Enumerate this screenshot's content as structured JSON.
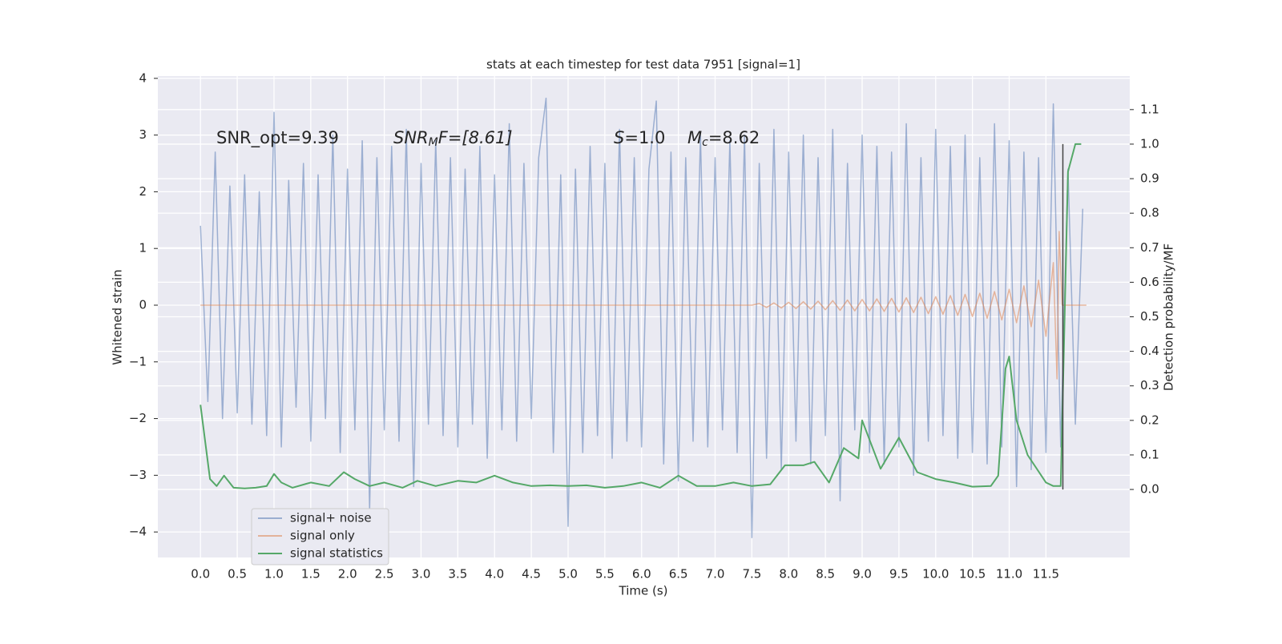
{
  "chart_data": {
    "type": "line",
    "title": "stats at each timestep for test data 7951 [signal=1]",
    "xlabel": "Time (s)",
    "ylabel": "Whitened strain",
    "y2label": "Detection probability/MF",
    "xlim": [
      -0.58,
      12.64
    ],
    "ylim": [
      -4.45,
      4.04
    ],
    "y2lim": [
      -0.197,
      1.197
    ],
    "xticks": [
      {
        "value": 0,
        "label": "0.0"
      },
      0.5,
      {
        "value": 1,
        "label": "1.0"
      },
      1.5,
      {
        "value": 2,
        "label": "2.0"
      },
      2.5,
      {
        "value": 3,
        "label": "3.0"
      },
      3.5,
      {
        "value": 4,
        "label": "4.0"
      },
      4.5,
      {
        "value": 5,
        "label": "5.0"
      },
      5.5,
      {
        "value": 6,
        "label": "6.0"
      },
      6.5,
      {
        "value": 7,
        "label": "7.0"
      },
      7.5,
      {
        "value": 8,
        "label": "8.0"
      },
      8.5,
      {
        "value": 9,
        "label": "9.0"
      },
      9.5,
      {
        "value": 10,
        "label": "10.0"
      },
      10.5,
      {
        "value": 11,
        "label": "11.0"
      },
      11.5
    ],
    "yticks": [
      {
        "value": -4,
        "label": "−4"
      },
      {
        "value": -3,
        "label": "−3"
      },
      {
        "value": -2,
        "label": "−2"
      },
      {
        "value": -1,
        "label": "−1"
      },
      0,
      1,
      2,
      3,
      4
    ],
    "y2ticks": [
      {
        "value": 0,
        "label": "0.0"
      },
      0.1,
      0.2,
      0.3,
      0.4,
      0.5,
      0.6,
      0.7,
      0.8,
      0.9,
      {
        "value": 1,
        "label": "1.0"
      },
      1.1
    ],
    "grid": true,
    "legend": "lower left",
    "annotations": [
      {
        "base": "SNR_opt=9.39"
      },
      {
        "base": "SNR",
        "sub": "M",
        "rest": "F=[8.61]"
      },
      {
        "base": "S",
        "rest": "=1.0"
      },
      {
        "base": "M",
        "sub": "c",
        "rest": "=8.62"
      }
    ],
    "vline": {
      "x": 11.73,
      "y2": [
        0,
        1.0
      ],
      "color": "#444444"
    },
    "series": [
      {
        "name": "signal+ noise",
        "color": "#4c72b0",
        "x": [
          0,
          0.1,
          0.2,
          0.3,
          0.4,
          0.5,
          0.6,
          0.7,
          0.8,
          0.9,
          1,
          1.1,
          1.2,
          1.3,
          1.4,
          1.5,
          1.6,
          1.7,
          1.8,
          1.9,
          2,
          2.1,
          2.2,
          2.3,
          2.4,
          2.5,
          2.6,
          2.7,
          2.8,
          2.9,
          3,
          3.1,
          3.2,
          3.3,
          3.4,
          3.5,
          3.6,
          3.7,
          3.8,
          3.9,
          4,
          4.1,
          4.2,
          4.3,
          4.4,
          4.5,
          4.6,
          4.7,
          4.8,
          4.9,
          5,
          5.1,
          5.2,
          5.3,
          5.4,
          5.5,
          5.6,
          5.7,
          5.8,
          5.9,
          6,
          6.1,
          6.2,
          6.3,
          6.4,
          6.5,
          6.6,
          6.7,
          6.8,
          6.9,
          7,
          7.1,
          7.2,
          7.3,
          7.4,
          7.5,
          7.6,
          7.7,
          7.8,
          7.9,
          8,
          8.1,
          8.2,
          8.3,
          8.4,
          8.5,
          8.6,
          8.7,
          8.8,
          8.9,
          9,
          9.1,
          9.2,
          9.3,
          9.4,
          9.5,
          9.6,
          9.7,
          9.8,
          9.9,
          10,
          10.1,
          10.2,
          10.3,
          10.4,
          10.5,
          10.6,
          10.7,
          10.8,
          10.9,
          11,
          11.1,
          11.2,
          11.3,
          11.4,
          11.5,
          11.6,
          11.7,
          11.8,
          11.9,
          12
        ],
        "values": [
          1.4,
          -1.7,
          2.7,
          -2.0,
          2.1,
          -1.9,
          2.3,
          -2.1,
          2.0,
          -2.3,
          3.4,
          -2.5,
          2.2,
          -1.8,
          2.5,
          -2.4,
          2.3,
          -2.0,
          3.0,
          -2.6,
          2.4,
          -2.2,
          2.9,
          -3.6,
          2.6,
          -2.2,
          2.8,
          -2.4,
          3.1,
          -3.2,
          2.5,
          -2.1,
          2.9,
          -2.3,
          2.6,
          -2.5,
          2.4,
          -2.1,
          2.8,
          -2.7,
          2.3,
          -2.2,
          3.2,
          -2.4,
          2.5,
          -2.0,
          2.6,
          3.65,
          -2.6,
          2.3,
          -3.9,
          2.4,
          -2.6,
          2.8,
          -2.3,
          2.5,
          -2.7,
          3.1,
          -2.4,
          2.6,
          -2.5,
          2.4,
          3.6,
          -2.8,
          2.7,
          -3.1,
          2.6,
          -2.4,
          3.0,
          -2.5,
          2.6,
          -2.2,
          2.9,
          -2.6,
          3.0,
          -4.1,
          2.5,
          -2.7,
          3.1,
          -2.9,
          2.7,
          -2.4,
          3.0,
          -2.8,
          2.6,
          -2.3,
          3.1,
          -3.45,
          2.5,
          -2.2,
          3.0,
          -2.6,
          2.8,
          -2.8,
          2.7,
          -2.5,
          3.2,
          -3.0,
          2.6,
          -2.4,
          3.1,
          -2.3,
          2.8,
          -2.7,
          3.0,
          -2.6,
          2.6,
          -2.8,
          3.2,
          -2.5,
          2.9,
          -3.2,
          2.7,
          -2.9,
          2.6,
          -2.6,
          3.55,
          -2.5,
          2.4,
          -2.1,
          1.7
        ]
      },
      {
        "name": "signal only",
        "color": "#dd8452",
        "x": [
          0,
          7.5,
          7.6,
          7.7,
          7.8,
          7.9,
          8,
          8.1,
          8.2,
          8.3,
          8.4,
          8.5,
          8.6,
          8.7,
          8.8,
          8.9,
          9,
          9.1,
          9.2,
          9.3,
          9.4,
          9.5,
          9.6,
          9.7,
          9.8,
          9.9,
          10,
          10.1,
          10.2,
          10.3,
          10.4,
          10.5,
          10.6,
          10.7,
          10.8,
          10.9,
          11,
          11.1,
          11.2,
          11.3,
          11.4,
          11.5,
          11.6,
          11.65,
          11.68,
          11.72,
          12.05
        ],
        "values": [
          0,
          0,
          0.03,
          -0.04,
          0.04,
          -0.05,
          0.05,
          -0.06,
          0.06,
          -0.07,
          0.07,
          -0.08,
          0.08,
          -0.09,
          0.09,
          -0.1,
          0.1,
          -0.1,
          0.11,
          -0.11,
          0.12,
          -0.12,
          0.13,
          -0.13,
          0.14,
          -0.15,
          0.15,
          -0.16,
          0.17,
          -0.18,
          0.19,
          -0.2,
          0.21,
          -0.23,
          0.24,
          -0.26,
          0.28,
          -0.31,
          0.34,
          -0.38,
          0.44,
          -0.55,
          0.75,
          -1.3,
          1.3,
          0,
          0
        ]
      },
      {
        "name": "signal statistics",
        "color": "#55a868",
        "axis": "y2",
        "x": [
          0,
          0.13,
          0.22,
          0.32,
          0.45,
          0.6,
          0.75,
          0.9,
          1,
          1.1,
          1.25,
          1.5,
          1.75,
          1.95,
          2.1,
          2.3,
          2.5,
          2.75,
          2.95,
          3.2,
          3.5,
          3.75,
          4,
          4.25,
          4.5,
          4.75,
          5,
          5.25,
          5.5,
          5.75,
          6,
          6.25,
          6.5,
          6.75,
          7,
          7.25,
          7.5,
          7.75,
          7.95,
          8.2,
          8.35,
          8.55,
          8.75,
          8.95,
          9,
          9.25,
          9.5,
          9.75,
          10,
          10.25,
          10.5,
          10.75,
          10.85,
          10.95,
          11,
          11.1,
          11.25,
          11.5,
          11.6,
          11.7,
          11.8,
          11.9,
          11.98
        ],
        "values": [
          0.245,
          0.03,
          0.01,
          0.04,
          0.005,
          0.003,
          0.005,
          0.01,
          0.045,
          0.02,
          0.005,
          0.02,
          0.01,
          0.05,
          0.03,
          0.01,
          0.02,
          0.005,
          0.025,
          0.01,
          0.025,
          0.02,
          0.04,
          0.02,
          0.01,
          0.012,
          0.01,
          0.012,
          0.005,
          0.01,
          0.02,
          0.005,
          0.04,
          0.01,
          0.01,
          0.02,
          0.01,
          0.015,
          0.07,
          0.07,
          0.08,
          0.02,
          0.12,
          0.09,
          0.2,
          0.06,
          0.15,
          0.05,
          0.03,
          0.02,
          0.008,
          0.01,
          0.04,
          0.35,
          0.385,
          0.2,
          0.1,
          0.02,
          0.01,
          0.01,
          0.92,
          1.0,
          1.0
        ]
      }
    ]
  }
}
